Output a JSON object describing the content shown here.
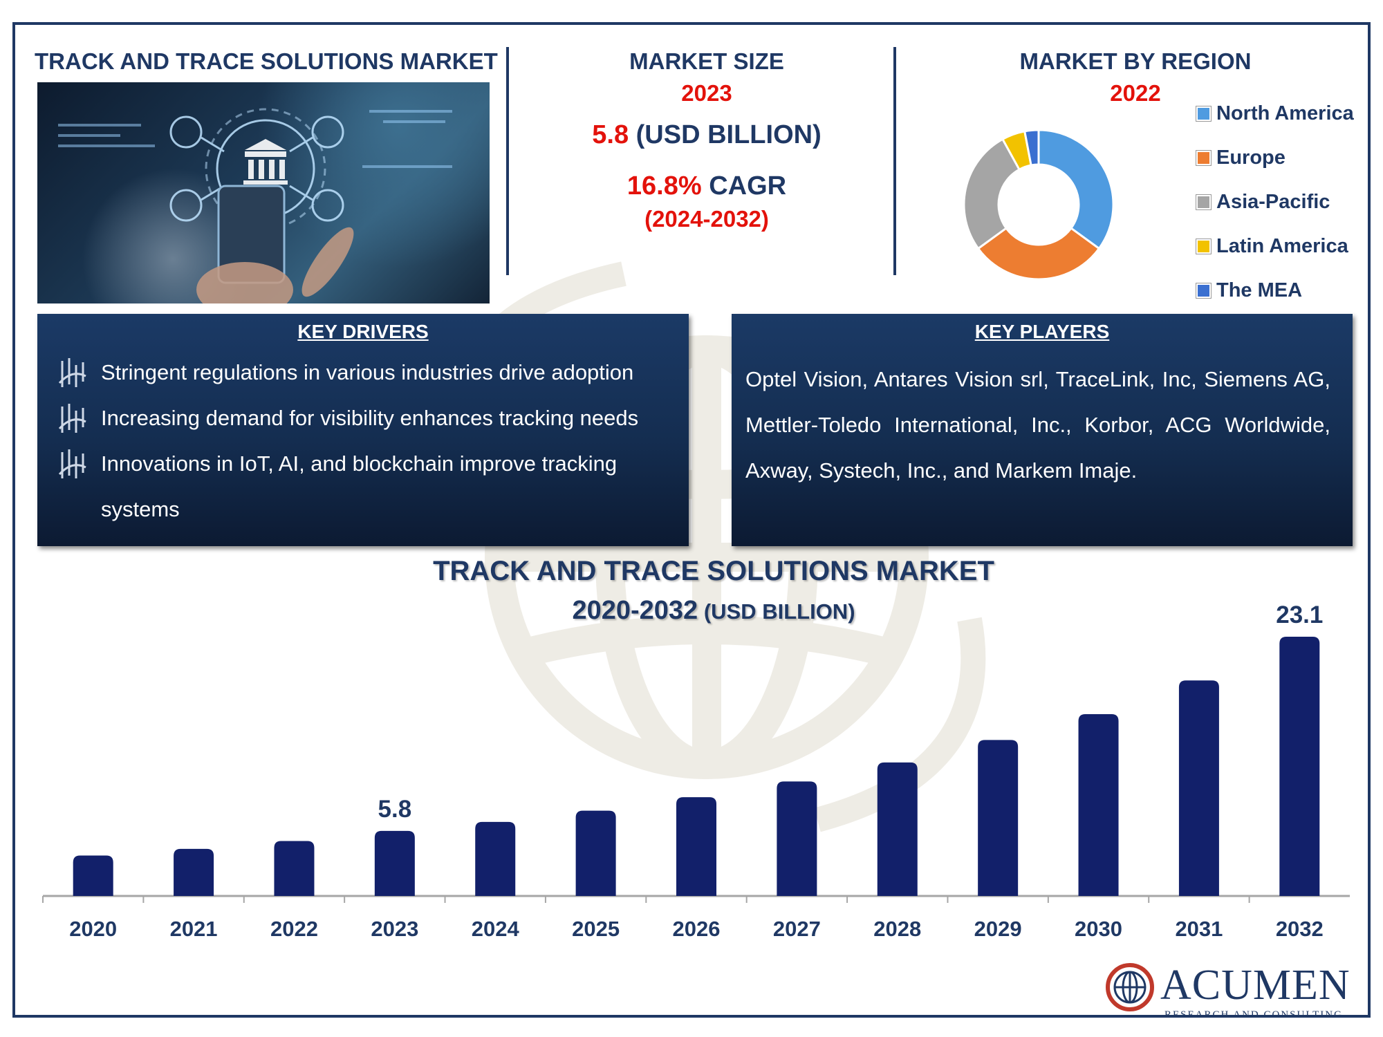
{
  "header": {
    "left_title": "TRACK AND TRACE SOLUTIONS MARKET",
    "size_title": "MARKET SIZE",
    "size_year": "2023",
    "size_value": "5.8",
    "size_unit": " (USD BILLION)",
    "cagr_value": "16.8%",
    "cagr_label": " CAGR",
    "cagr_period": "(2024-2032)",
    "region_title": "MARKET BY REGION",
    "region_year": "2022"
  },
  "region_chart": {
    "type": "pie",
    "categories": [
      "North America",
      "Europe",
      "Asia-Pacific",
      "Latin America",
      "The MEA"
    ],
    "values": [
      35,
      30,
      27,
      5,
      3
    ],
    "colors": [
      "#4f9be0",
      "#ed7d31",
      "#a5a5a5",
      "#f2c200",
      "#3a6fd0"
    ]
  },
  "drivers": {
    "title": "KEY DRIVERS",
    "items": [
      "Stringent regulations in various industries drive adoption",
      "Increasing demand for visibility enhances tracking needs",
      "Innovations in IoT, AI, and blockchain improve tracking systems"
    ]
  },
  "players": {
    "title": "KEY PLAYERS",
    "text": "Optel Vision, Antares Vision srl, TraceLink, Inc, Siemens AG, Mettler-Toledo International, Inc., Korbor, ACG Worldwide, Axway, Systech, Inc., and Markem Imaje."
  },
  "chart_data": {
    "type": "bar",
    "title": "TRACK AND TRACE SOLUTIONS MARKET",
    "subtitle": "2020-2032",
    "unit_label": " (USD BILLION)",
    "categories": [
      "2020",
      "2021",
      "2022",
      "2023",
      "2024",
      "2025",
      "2026",
      "2027",
      "2028",
      "2029",
      "2030",
      "2031",
      "2032"
    ],
    "values": [
      3.6,
      4.2,
      4.9,
      5.8,
      6.6,
      7.6,
      8.8,
      10.2,
      11.9,
      13.9,
      16.2,
      19.2,
      23.1
    ],
    "data_labels": {
      "3": "5.8",
      "12": "23.1"
    },
    "ylim": [
      0,
      23.1
    ],
    "grid": false,
    "bar_color": "#12206a"
  },
  "logo": {
    "name": "ACUMEN",
    "sub": "RESEARCH AND CONSULTING"
  }
}
